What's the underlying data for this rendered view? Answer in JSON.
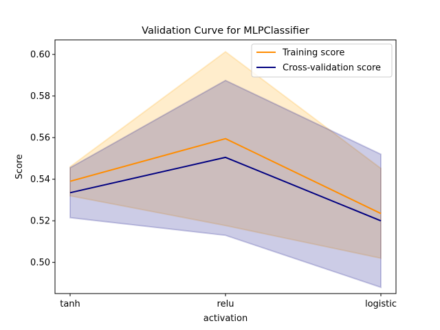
{
  "chart_data": {
    "type": "line",
    "title": "Validation Curve for MLPClassifier",
    "xlabel": "activation",
    "ylabel": "Score",
    "categories": [
      "tanh",
      "relu",
      "logistic"
    ],
    "ylim": [
      0.485,
      0.607
    ],
    "yticks": [
      0.5,
      0.52,
      0.54,
      0.56,
      0.58,
      0.6
    ],
    "ytick_labels": [
      "0.50",
      "0.52",
      "0.54",
      "0.56",
      "0.58",
      "0.60"
    ],
    "grid": false,
    "legend_position": "upper right",
    "series": [
      {
        "name": "Training score",
        "color": "#ff8c00",
        "fill_color": "#ffa500",
        "values": [
          0.539,
          0.5595,
          0.5235
        ],
        "upper": [
          0.546,
          0.6013,
          0.5452
        ],
        "lower": [
          0.532,
          0.5177,
          0.502
        ]
      },
      {
        "name": "Cross-validation score",
        "color": "#000080",
        "fill_color": "#000080",
        "values": [
          0.5335,
          0.5505,
          0.52
        ],
        "upper": [
          0.5455,
          0.5875,
          0.552
        ],
        "lower": [
          0.5215,
          0.513,
          0.488
        ]
      }
    ]
  }
}
